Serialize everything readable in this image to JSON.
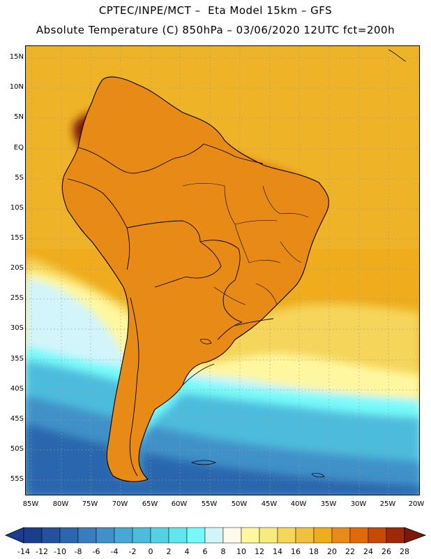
{
  "title_line1": "CPTEC/INPE/MCT –  Eta Model 15km – GFS",
  "title_line2": "Absolute Temperature (C) 850hPa – 03/06/2020 12UTC fct=200h",
  "lat_labels": [
    "15N",
    "10N",
    "5N",
    "EQ",
    "5S",
    "10S",
    "15S",
    "20S",
    "25S",
    "30S",
    "35S",
    "40S",
    "45S",
    "50S",
    "55S"
  ],
  "lon_labels": [
    "85W",
    "80W",
    "75W",
    "70W",
    "65W",
    "60W",
    "55W",
    "50W",
    "45W",
    "40W",
    "35W",
    "30W",
    "25W",
    "20W"
  ],
  "colorbar": {
    "labels": [
      "-14",
      "-12",
      "-10",
      "-8",
      "-6",
      "-4",
      "-2",
      "0",
      "2",
      "4",
      "6",
      "8",
      "10",
      "12",
      "14",
      "16",
      "18",
      "20",
      "22",
      "24",
      "26",
      "28"
    ],
    "colors": [
      "#1c3c8c",
      "#24519e",
      "#2c66ae",
      "#3a7cbc",
      "#3f91c8",
      "#47a8d4",
      "#4dbcdc",
      "#55d0e6",
      "#64e4ee",
      "#74fafa",
      "#d2f5fb",
      "#fffaea",
      "#fff7a0",
      "#f9ea80",
      "#f5d55a",
      "#f2c040",
      "#efac1c",
      "#e88a16",
      "#e06a08",
      "#c54a06",
      "#9c2a04",
      "#7c1808"
    ]
  },
  "colors": {
    "ocean_warm": "#efac1c",
    "ocean_mid": "#f5d55a",
    "ocean_cool": "#d2f5fb",
    "ocean_cold": "#4dbcdc",
    "ocean_coldest": "#2c66ae",
    "land_hot": "#9c2a04",
    "land_very_hot": "#7c1808"
  }
}
